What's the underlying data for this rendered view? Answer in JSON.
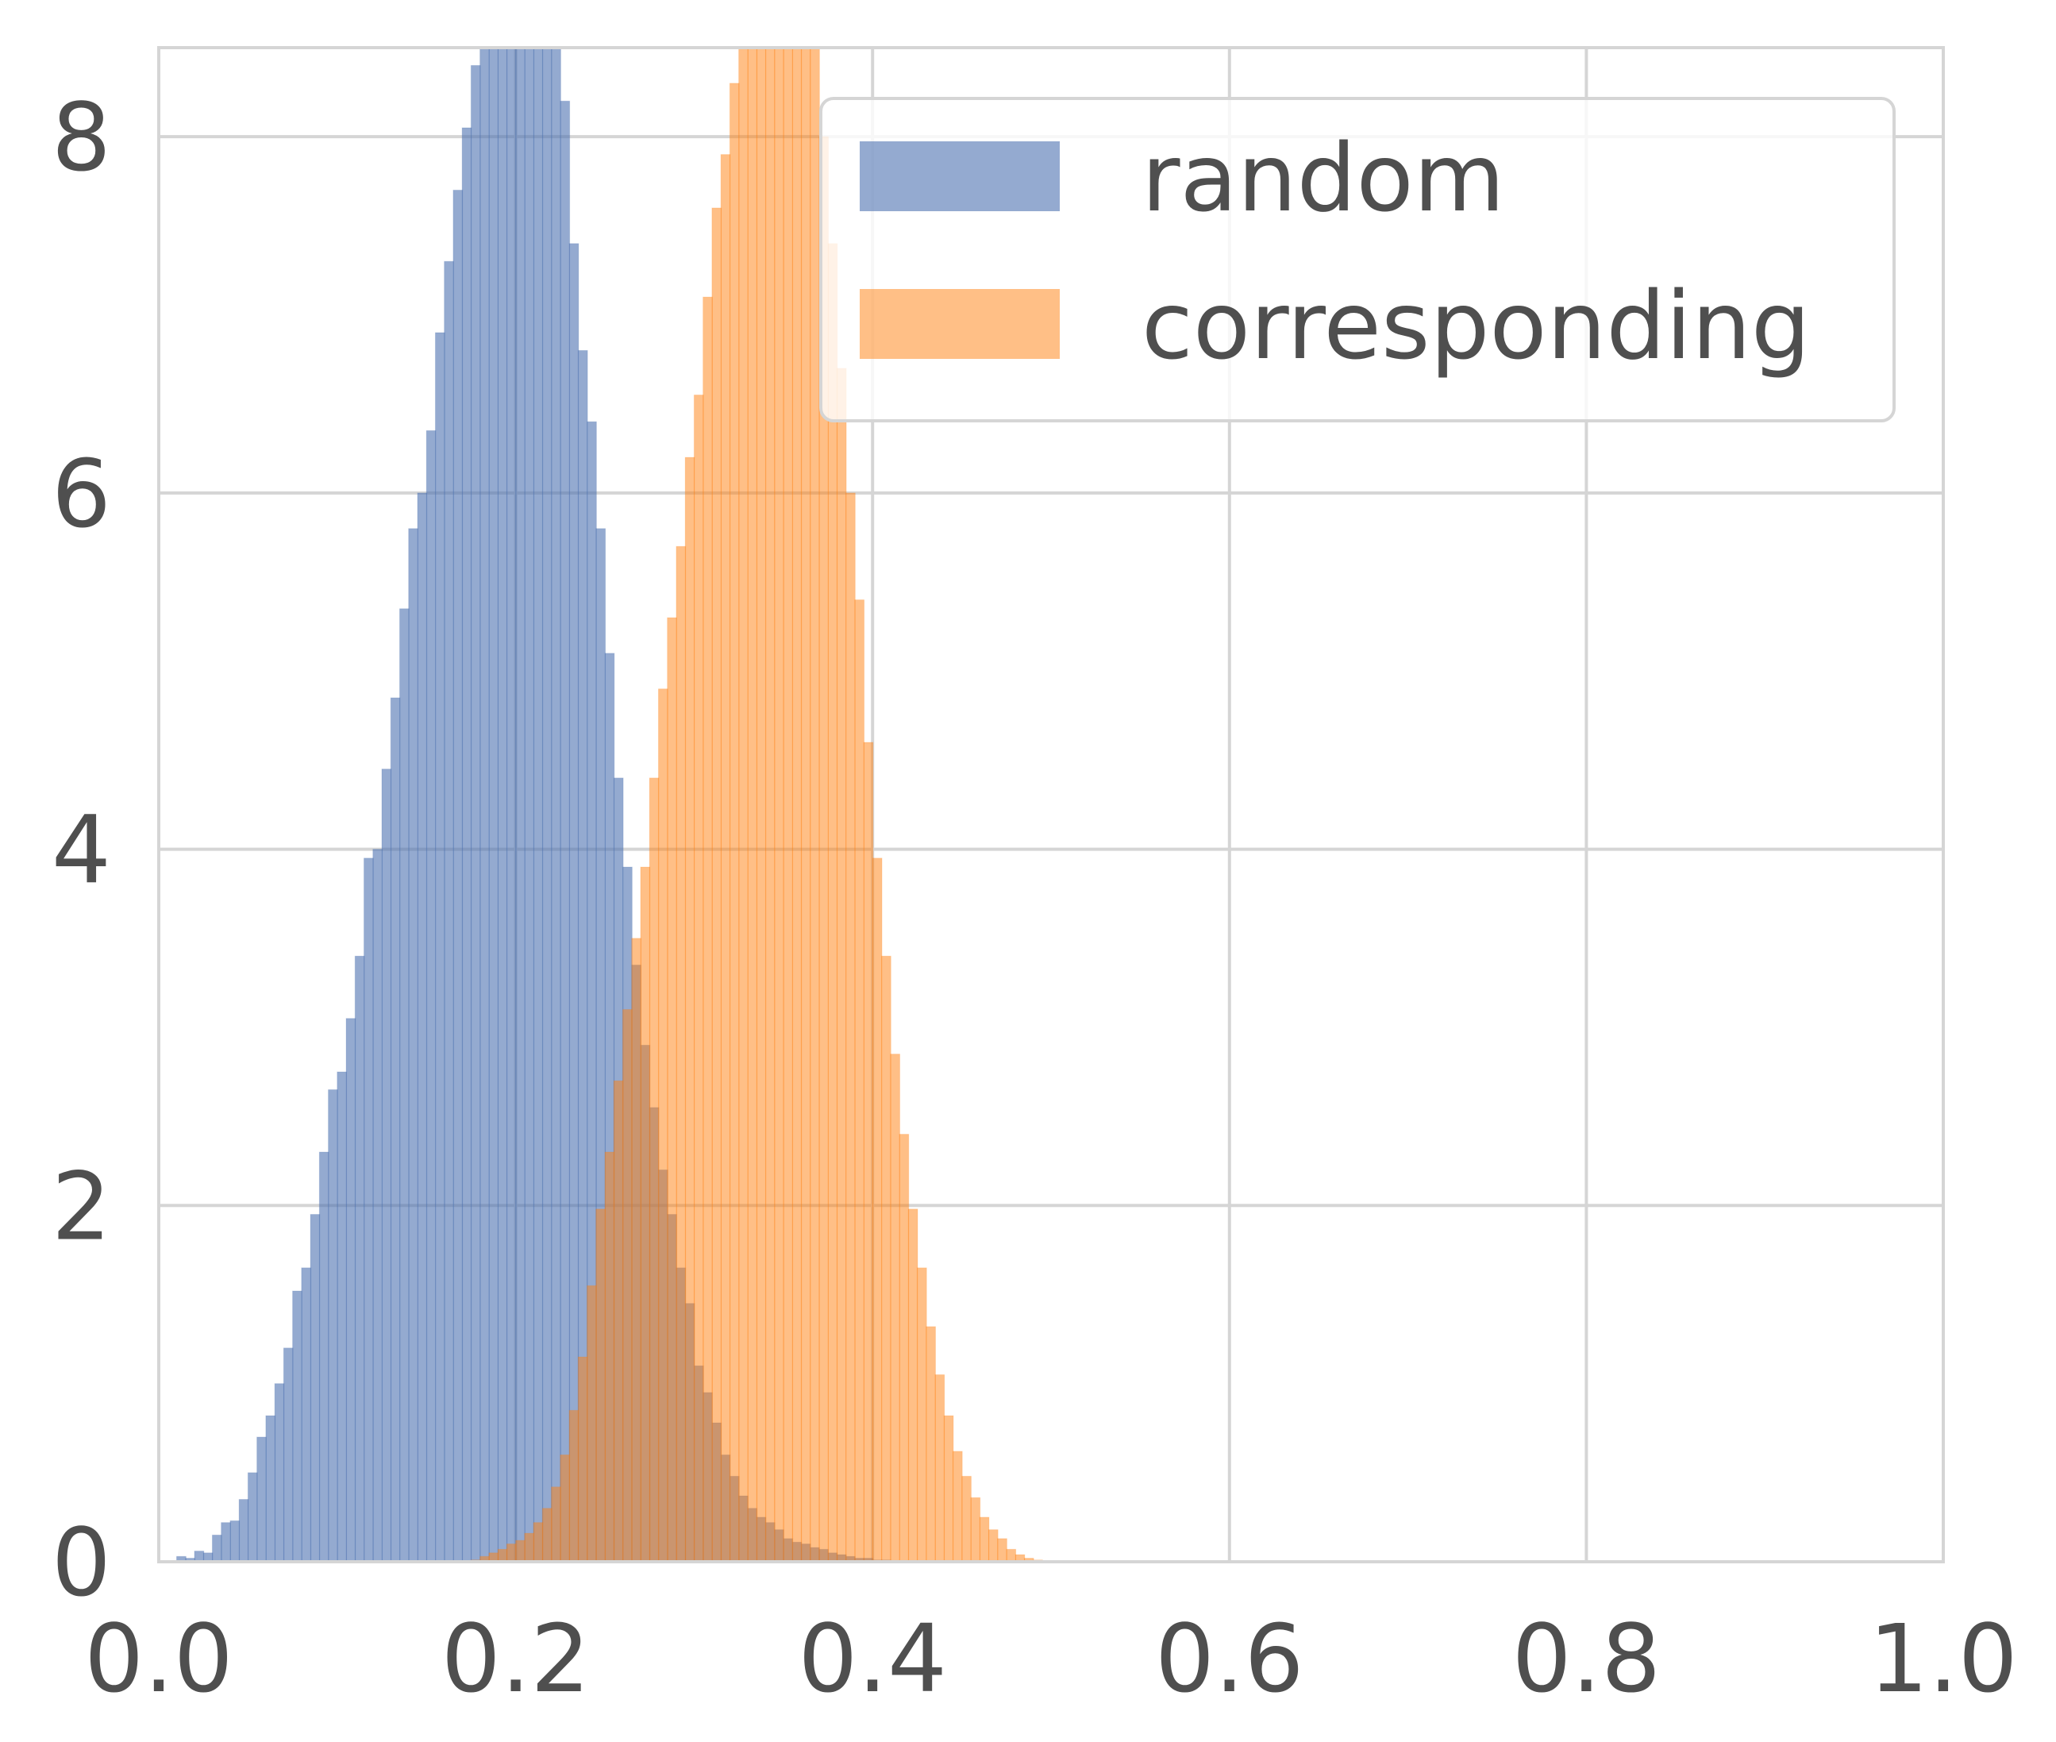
{
  "chart_data": {
    "type": "histogram",
    "title": "",
    "xlabel": "",
    "ylabel": "",
    "xlim": [
      0.0,
      1.0
    ],
    "ylim": [
      0,
      8.5
    ],
    "x_ticks": [
      "0.0",
      "0.2",
      "0.4",
      "0.6",
      "0.8",
      "1.0"
    ],
    "y_ticks": [
      "0",
      "2",
      "4",
      "6",
      "8"
    ],
    "x_tick_values": [
      0.0,
      0.2,
      0.4,
      0.6,
      0.8,
      1.0
    ],
    "y_tick_values": [
      0,
      2,
      4,
      6,
      8
    ],
    "grid": true,
    "legend_position": "top-right",
    "bin_width": 0.005,
    "series": [
      {
        "name": "random",
        "color": "#4c72b0",
        "opacity": 0.6,
        "bin_start": 0.01,
        "density": [
          0.03,
          0.02,
          0.06,
          0.05,
          0.15,
          0.22,
          0.23,
          0.35,
          0.5,
          0.7,
          0.82,
          1.0,
          1.2,
          1.52,
          1.65,
          1.95,
          2.3,
          2.65,
          2.75,
          3.05,
          3.4,
          3.95,
          4.0,
          4.45,
          4.85,
          5.35,
          5.8,
          6.0,
          6.35,
          6.9,
          7.3,
          7.7,
          8.05,
          8.4,
          8.9,
          9.2,
          9.4,
          9.5,
          9.3,
          9.2,
          9.3,
          9.1,
          8.7,
          8.2,
          7.4,
          6.8,
          6.4,
          5.8,
          5.1,
          4.4,
          3.9,
          3.35,
          2.9,
          2.55,
          2.2,
          1.95,
          1.65,
          1.45,
          1.1,
          0.95,
          0.78,
          0.6,
          0.48,
          0.37,
          0.3,
          0.25,
          0.22,
          0.18,
          0.13,
          0.11,
          0.1,
          0.08,
          0.07,
          0.05,
          0.04,
          0.03,
          0.02,
          0.02,
          0.01,
          0.01
        ]
      },
      {
        "name": "corresponding",
        "color": "#ff7f0e",
        "opacity": 0.5,
        "bin_start": 0.175,
        "density": [
          0.01,
          0.03,
          0.05,
          0.07,
          0.1,
          0.12,
          0.16,
          0.22,
          0.3,
          0.42,
          0.6,
          0.85,
          1.15,
          1.55,
          1.98,
          2.3,
          2.7,
          3.1,
          3.5,
          3.9,
          4.4,
          4.9,
          5.3,
          5.7,
          6.2,
          6.55,
          7.1,
          7.6,
          7.9,
          8.3,
          8.6,
          9.0,
          9.3,
          9.5,
          9.6,
          9.4,
          9.2,
          8.9,
          8.6,
          8.0,
          7.4,
          6.7,
          6.0,
          5.4,
          4.6,
          3.95,
          3.4,
          2.85,
          2.4,
          1.98,
          1.65,
          1.32,
          1.05,
          0.82,
          0.62,
          0.48,
          0.36,
          0.25,
          0.18,
          0.13,
          0.07,
          0.04,
          0.02,
          0.01
        ]
      }
    ]
  }
}
